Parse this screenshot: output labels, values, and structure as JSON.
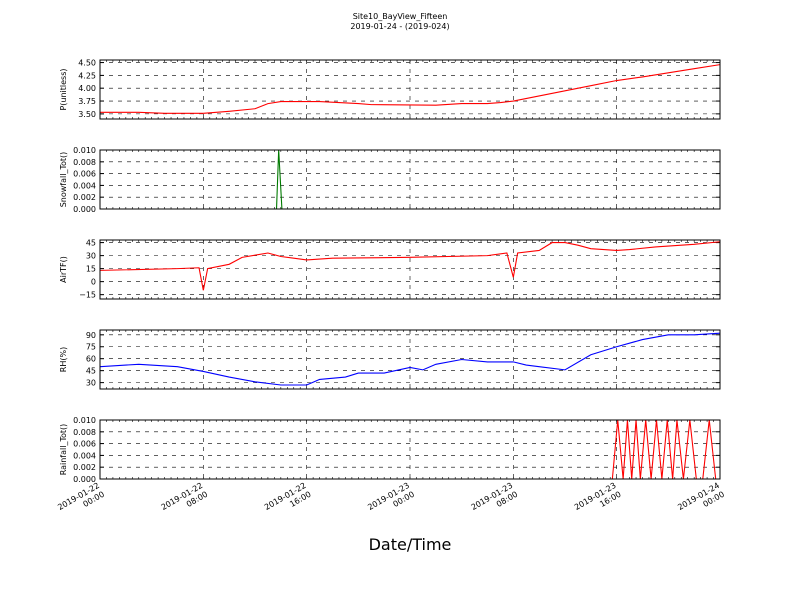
{
  "chart_data": {
    "title": "Site10_BayView_Fifteen",
    "subtitle": "2019-01-24 - (2019-024)",
    "xlabel": "Date/Time",
    "xlim": [
      "2019-01-22 00:00",
      "2019-01-24 00:00"
    ],
    "xticks": [
      {
        "t": "2019-01-22 00:00",
        "label": [
          "2019-01-22",
          "00:00"
        ]
      },
      {
        "t": "2019-01-22 08:00",
        "label": [
          "2019-01-22",
          "08:00"
        ]
      },
      {
        "t": "2019-01-22 16:00",
        "label": [
          "2019-01-22",
          "16:00"
        ]
      },
      {
        "t": "2019-01-23 00:00",
        "label": [
          "2019-01-23",
          "00:00"
        ]
      },
      {
        "t": "2019-01-23 08:00",
        "label": [
          "2019-01-23",
          "08:00"
        ]
      },
      {
        "t": "2019-01-23 16:00",
        "label": [
          "2019-01-23",
          "16:00"
        ]
      },
      {
        "t": "2019-01-24 00:00",
        "label": [
          "2019-01-24",
          "00:00"
        ]
      }
    ],
    "grid": true,
    "panels": [
      {
        "type": "line",
        "ylabel": "P(unitless)",
        "color": "#ff0000",
        "ylim": [
          3.4,
          4.55
        ],
        "yticks": [
          3.5,
          3.75,
          4.0,
          4.25,
          4.5
        ],
        "yticklabels": [
          "3.50",
          "3.75",
          "4.00",
          "4.25",
          "4.50"
        ],
        "points": [
          [
            "2019-01-22 00:00",
            3.53
          ],
          [
            "2019-01-22 03:00",
            3.53
          ],
          [
            "2019-01-22 05:00",
            3.51
          ],
          [
            "2019-01-22 08:00",
            3.51
          ],
          [
            "2019-01-22 10:00",
            3.55
          ],
          [
            "2019-01-22 12:00",
            3.6
          ],
          [
            "2019-01-22 13:00",
            3.7
          ],
          [
            "2019-01-22 14:00",
            3.74
          ],
          [
            "2019-01-22 17:00",
            3.74
          ],
          [
            "2019-01-22 20:00",
            3.7
          ],
          [
            "2019-01-22 21:00",
            3.68
          ],
          [
            "2019-01-23 02:00",
            3.67
          ],
          [
            "2019-01-23 04:00",
            3.7
          ],
          [
            "2019-01-23 06:00",
            3.7
          ],
          [
            "2019-01-23 07:00",
            3.72
          ],
          [
            "2019-01-23 08:00",
            3.75
          ],
          [
            "2019-01-23 10:00",
            3.85
          ],
          [
            "2019-01-23 12:00",
            3.95
          ],
          [
            "2019-01-23 14:00",
            4.05
          ],
          [
            "2019-01-23 16:00",
            4.15
          ],
          [
            "2019-01-23 18:00",
            4.22
          ],
          [
            "2019-01-23 20:00",
            4.3
          ],
          [
            "2019-01-23 22:00",
            4.38
          ],
          [
            "2019-01-24 00:00",
            4.46
          ]
        ]
      },
      {
        "type": "line",
        "ylabel": "Snowfall_Tot()",
        "color": "#007a00",
        "ylim": [
          0,
          0.01
        ],
        "yticks": [
          0,
          0.002,
          0.004,
          0.006,
          0.008,
          0.01
        ],
        "yticklabels": [
          "0.000",
          "0.002",
          "0.004",
          "0.006",
          "0.008",
          "0.010"
        ],
        "points": [
          [
            "2019-01-22 00:00",
            0
          ],
          [
            "2019-01-22 13:40",
            0
          ],
          [
            "2019-01-22 13:50",
            0.01
          ],
          [
            "2019-01-22 14:05",
            0
          ],
          [
            "2019-01-24 00:00",
            0
          ]
        ]
      },
      {
        "type": "line",
        "ylabel": "AirTF()",
        "color": "#ff0000",
        "ylim": [
          -20,
          48
        ],
        "yticks": [
          -15,
          0,
          15,
          30,
          45
        ],
        "yticklabels": [
          "−15",
          "0",
          "15",
          "30",
          "45"
        ],
        "points": [
          [
            "2019-01-22 00:00",
            13
          ],
          [
            "2019-01-22 06:00",
            15
          ],
          [
            "2019-01-22 07:40",
            16
          ],
          [
            "2019-01-22 08:00",
            -10
          ],
          [
            "2019-01-22 08:20",
            15
          ],
          [
            "2019-01-22 10:00",
            20
          ],
          [
            "2019-01-22 11:00",
            28
          ],
          [
            "2019-01-22 13:00",
            33
          ],
          [
            "2019-01-22 14:00",
            29
          ],
          [
            "2019-01-22 15:00",
            27
          ],
          [
            "2019-01-22 16:00",
            25
          ],
          [
            "2019-01-22 18:00",
            27
          ],
          [
            "2019-01-23 00:00",
            28
          ],
          [
            "2019-01-23 06:00",
            30
          ],
          [
            "2019-01-23 07:30",
            33
          ],
          [
            "2019-01-23 08:00",
            5
          ],
          [
            "2019-01-23 08:20",
            33
          ],
          [
            "2019-01-23 10:00",
            36
          ],
          [
            "2019-01-23 11:00",
            45
          ],
          [
            "2019-01-23 12:00",
            45
          ],
          [
            "2019-01-23 13:00",
            42
          ],
          [
            "2019-01-23 14:00",
            38
          ],
          [
            "2019-01-23 16:00",
            36
          ],
          [
            "2019-01-23 17:00",
            37
          ],
          [
            "2019-01-23 19:00",
            40
          ],
          [
            "2019-01-23 22:00",
            43
          ],
          [
            "2019-01-24 00:00",
            46
          ]
        ]
      },
      {
        "type": "line",
        "ylabel": "RH(%)",
        "color": "#0000ff",
        "ylim": [
          22,
          96
        ],
        "yticks": [
          30,
          45,
          60,
          75,
          90
        ],
        "yticklabels": [
          "30",
          "45",
          "60",
          "75",
          "90"
        ],
        "points": [
          [
            "2019-01-22 00:00",
            50
          ],
          [
            "2019-01-22 03:00",
            53
          ],
          [
            "2019-01-22 06:00",
            50
          ],
          [
            "2019-01-22 08:00",
            44
          ],
          [
            "2019-01-22 10:00",
            37
          ],
          [
            "2019-01-22 12:00",
            31
          ],
          [
            "2019-01-22 14:00",
            27
          ],
          [
            "2019-01-22 16:00",
            27
          ],
          [
            "2019-01-22 17:00",
            34
          ],
          [
            "2019-01-22 19:00",
            37
          ],
          [
            "2019-01-22 20:00",
            42
          ],
          [
            "2019-01-22 22:00",
            42
          ],
          [
            "2019-01-23 00:00",
            49
          ],
          [
            "2019-01-23 01:00",
            46
          ],
          [
            "2019-01-23 02:00",
            53
          ],
          [
            "2019-01-23 04:00",
            59
          ],
          [
            "2019-01-23 06:00",
            56
          ],
          [
            "2019-01-23 08:00",
            56
          ],
          [
            "2019-01-23 09:00",
            52
          ],
          [
            "2019-01-23 10:00",
            50
          ],
          [
            "2019-01-23 12:00",
            46
          ],
          [
            "2019-01-23 14:00",
            65
          ],
          [
            "2019-01-23 16:00",
            75
          ],
          [
            "2019-01-23 18:00",
            84
          ],
          [
            "2019-01-23 20:00",
            90
          ],
          [
            "2019-01-23 22:00",
            90
          ],
          [
            "2019-01-24 00:00",
            92
          ]
        ]
      },
      {
        "type": "line",
        "ylabel": "Rainfall_Tot()",
        "color": "#ff0000",
        "ylim": [
          0,
          0.01
        ],
        "yticks": [
          0,
          0.002,
          0.004,
          0.006,
          0.008,
          0.01
        ],
        "yticklabels": [
          "0.000",
          "0.002",
          "0.004",
          "0.006",
          "0.008",
          "0.010"
        ],
        "points": [
          [
            "2019-01-22 00:00",
            0
          ],
          [
            "2019-01-23 15:40",
            0
          ],
          [
            "2019-01-23 16:05",
            0.01
          ],
          [
            "2019-01-23 16:30",
            0
          ],
          [
            "2019-01-23 16:50",
            0.01
          ],
          [
            "2019-01-23 17:10",
            0
          ],
          [
            "2019-01-23 17:30",
            0.01
          ],
          [
            "2019-01-23 17:50",
            0
          ],
          [
            "2019-01-23 18:15",
            0.01
          ],
          [
            "2019-01-23 18:40",
            0
          ],
          [
            "2019-01-23 19:05",
            0.01
          ],
          [
            "2019-01-23 19:30",
            0
          ],
          [
            "2019-01-23 19:55",
            0.01
          ],
          [
            "2019-01-23 20:20",
            0
          ],
          [
            "2019-01-23 20:40",
            0.01
          ],
          [
            "2019-01-23 21:10",
            0
          ],
          [
            "2019-01-23 21:40",
            0.01
          ],
          [
            "2019-01-23 22:10",
            0
          ],
          [
            "2019-01-23 22:40",
            0
          ],
          [
            "2019-01-23 23:10",
            0.01
          ],
          [
            "2019-01-23 23:40",
            0
          ],
          [
            "2019-01-24 00:00",
            0
          ]
        ]
      }
    ]
  }
}
